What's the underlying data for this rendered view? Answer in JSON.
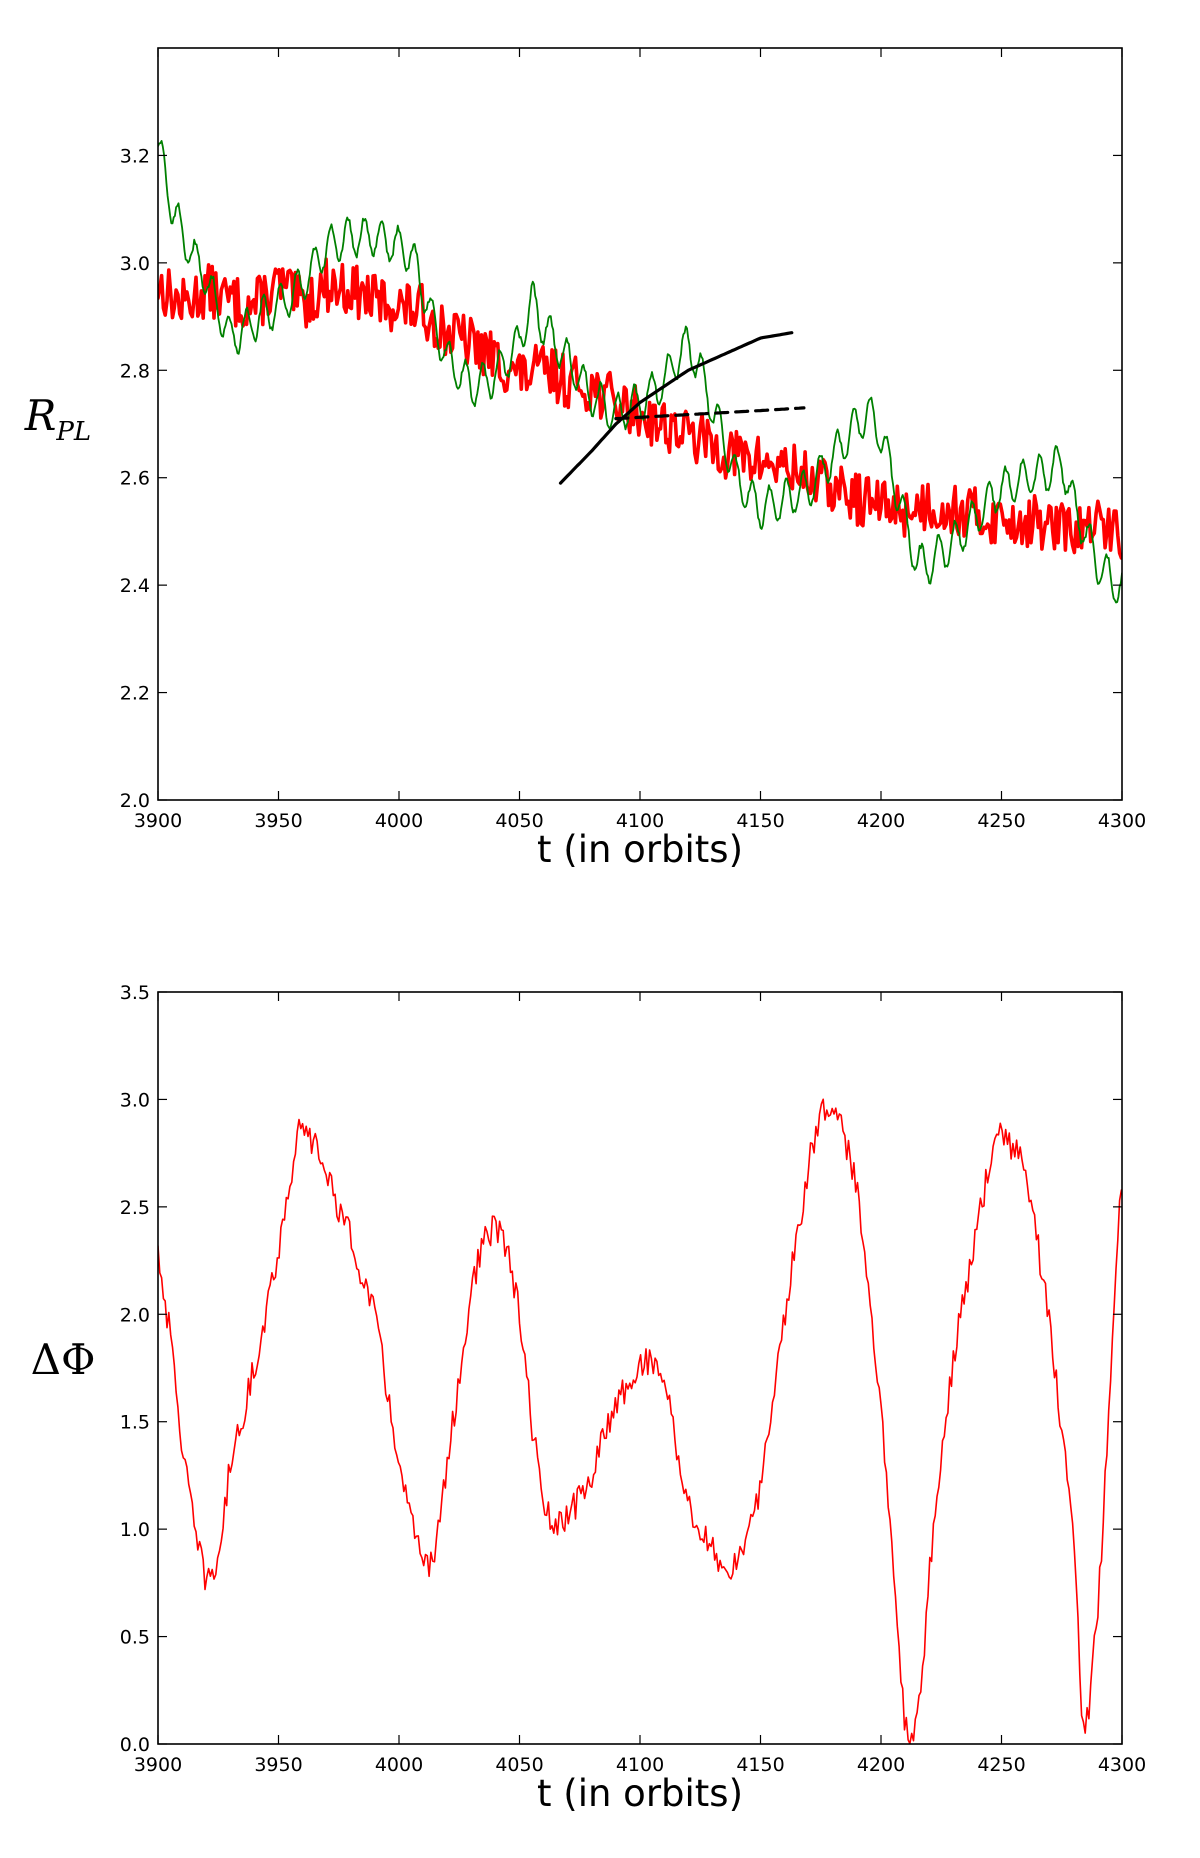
{
  "chart_data": [
    {
      "type": "line",
      "xlabel": "t (in orbits)",
      "ylabel_main": "R",
      "ylabel_sub": "PL",
      "xlim": [
        3900,
        4300
      ],
      "ylim": [
        2.0,
        3.4
      ],
      "xticks": [
        3900,
        3950,
        4000,
        4050,
        4100,
        4150,
        4200,
        4250,
        4300
      ],
      "xtick_labels": [
        "3900",
        "3950",
        "4000",
        "4050",
        "4100",
        "4150",
        "4200",
        "4250",
        "4300"
      ],
      "yticks": [
        2.0,
        2.2,
        2.4,
        2.6,
        2.8,
        3.0,
        3.2
      ],
      "ytick_labels": [
        "2.0",
        "2.2",
        "2.4",
        "2.6",
        "2.8",
        "3.0",
        "3.2"
      ],
      "grid": false,
      "series": [
        {
          "color": "#ff0000",
          "style": "thick-noisy",
          "x": [
            3900,
            3910,
            3920,
            3930,
            3940,
            3950,
            3960,
            3970,
            3980,
            3990,
            4000,
            4010,
            4020,
            4030,
            4040,
            4050,
            4060,
            4070,
            4080,
            4090,
            4100,
            4110,
            4120,
            4130,
            4140,
            4150,
            4160,
            4170,
            4180,
            4190,
            4200,
            4210,
            4220,
            4230,
            4240,
            4250,
            4260,
            4270,
            4280,
            4290,
            4300
          ],
          "y": [
            2.96,
            2.92,
            2.95,
            2.93,
            2.92,
            2.96,
            2.92,
            2.96,
            2.95,
            2.93,
            2.92,
            2.91,
            2.87,
            2.85,
            2.82,
            2.79,
            2.8,
            2.78,
            2.77,
            2.74,
            2.72,
            2.7,
            2.68,
            2.66,
            2.64,
            2.63,
            2.62,
            2.6,
            2.58,
            2.56,
            2.55,
            2.54,
            2.55,
            2.54,
            2.53,
            2.52,
            2.52,
            2.51,
            2.5,
            2.51,
            2.5
          ],
          "noise": 0.05
        },
        {
          "color": "#008000",
          "style": "thin-oscillating",
          "x": [
            3900,
            3905,
            3910,
            3920,
            3930,
            3940,
            3950,
            3960,
            3970,
            3980,
            3990,
            4000,
            4005,
            4010,
            4015,
            4020,
            4030,
            4040,
            4050,
            4055,
            4060,
            4070,
            4080,
            4090,
            4100,
            4110,
            4115,
            4120,
            4125,
            4130,
            4140,
            4150,
            4160,
            4170,
            4180,
            4190,
            4195,
            4200,
            4210,
            4215,
            4220,
            4230,
            4240,
            4250,
            4260,
            4270,
            4275,
            4280,
            4290,
            4300
          ],
          "y": [
            3.22,
            3.12,
            3.05,
            2.97,
            2.86,
            2.89,
            2.92,
            2.96,
            3.03,
            3.05,
            3.05,
            3.03,
            3.02,
            2.95,
            2.88,
            2.82,
            2.77,
            2.79,
            2.85,
            2.93,
            2.88,
            2.82,
            2.75,
            2.72,
            2.74,
            2.78,
            2.82,
            2.85,
            2.8,
            2.73,
            2.6,
            2.54,
            2.56,
            2.58,
            2.64,
            2.7,
            2.72,
            2.68,
            2.52,
            2.44,
            2.44,
            2.48,
            2.53,
            2.58,
            2.6,
            2.61,
            2.63,
            2.55,
            2.44,
            2.39
          ],
          "amplitude": 0.035
        },
        {
          "color": "#000000",
          "style": "solid",
          "x": [
            4067,
            4080,
            4090,
            4100,
            4110,
            4120,
            4130,
            4140,
            4150,
            4163
          ],
          "y": [
            2.59,
            2.65,
            2.7,
            2.74,
            2.77,
            2.8,
            2.82,
            2.84,
            2.86,
            2.87
          ]
        },
        {
          "color": "#000000",
          "style": "dashed",
          "x": [
            4090,
            4110,
            4130,
            4150,
            4168
          ],
          "y": [
            2.71,
            2.715,
            2.72,
            2.725,
            2.73
          ]
        }
      ]
    },
    {
      "type": "line",
      "xlabel": "t (in orbits)",
      "ylabel_main": "ΔΦ",
      "xlim": [
        3900,
        4300
      ],
      "ylim": [
        0.0,
        3.5
      ],
      "xticks": [
        3900,
        3950,
        4000,
        4050,
        4100,
        4150,
        4200,
        4250,
        4300
      ],
      "xtick_labels": [
        "3900",
        "3950",
        "4000",
        "4050",
        "4100",
        "4150",
        "4200",
        "4250",
        "4300"
      ],
      "yticks": [
        0.0,
        0.5,
        1.0,
        1.5,
        2.0,
        2.5,
        3.0,
        3.5
      ],
      "ytick_labels": [
        "0.0",
        "0.5",
        "1.0",
        "1.5",
        "2.0",
        "2.5",
        "3.0",
        "3.5"
      ],
      "grid": false,
      "series": [
        {
          "color": "#ff0000",
          "style": "thin-noisy",
          "x": [
            3900,
            3905,
            3910,
            3915,
            3920,
            3925,
            3930,
            3940,
            3950,
            3958,
            3965,
            3970,
            3980,
            3990,
            4000,
            4005,
            4010,
            4015,
            4020,
            4030,
            4035,
            4040,
            4045,
            4050,
            4055,
            4060,
            4065,
            4070,
            4080,
            4090,
            4100,
            4105,
            4110,
            4115,
            4120,
            4130,
            4135,
            4140,
            4145,
            4150,
            4160,
            4170,
            4175,
            4180,
            4190,
            4200,
            4205,
            4210,
            4213,
            4217,
            4220,
            4230,
            4240,
            4245,
            4250,
            4260,
            4270,
            4280,
            4283,
            4285,
            4290,
            4300
          ],
          "y": [
            2.3,
            1.9,
            1.4,
            1.0,
            0.75,
            0.85,
            1.3,
            1.75,
            2.3,
            2.85,
            2.8,
            2.65,
            2.35,
            2.0,
            1.3,
            1.05,
            0.8,
            0.9,
            1.3,
            2.1,
            2.35,
            2.4,
            2.3,
            2.0,
            1.5,
            1.1,
            1.0,
            1.05,
            1.25,
            1.6,
            1.75,
            1.8,
            1.7,
            1.4,
            1.1,
            0.9,
            0.8,
            0.85,
            0.95,
            1.2,
            2.0,
            2.7,
            2.95,
            3.0,
            2.6,
            1.6,
            0.8,
            0.1,
            0.05,
            0.3,
            0.8,
            1.8,
            2.4,
            2.7,
            2.85,
            2.7,
            1.95,
            1.0,
            0.2,
            0.05,
            0.6,
            2.7
          ],
          "noise": 0.07
        }
      ]
    }
  ]
}
